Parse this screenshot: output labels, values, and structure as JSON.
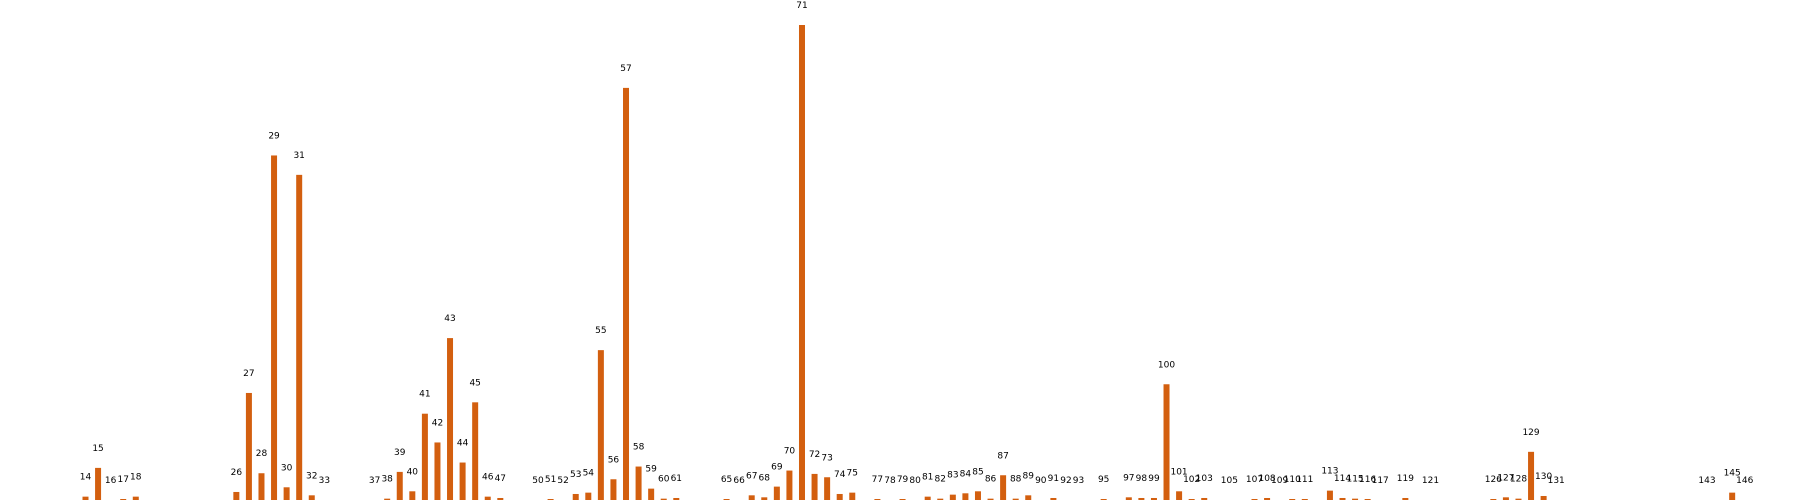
{
  "chart_data": {
    "type": "bar",
    "title": "",
    "xlabel": "",
    "ylabel": "",
    "grid": false,
    "bar_color": "#d35f0f",
    "x_range": [
      12,
      148
    ],
    "ylim": [
      0,
      71
    ],
    "points": [
      {
        "x": 14,
        "label": "14",
        "value": 0.5
      },
      {
        "x": 15,
        "label": "15",
        "value": 4.8
      },
      {
        "x": 16,
        "label": "16",
        "value": 0
      },
      {
        "x": 17,
        "label": "17",
        "value": 0.15
      },
      {
        "x": 18,
        "label": "18",
        "value": 0.5
      },
      {
        "x": 26,
        "label": "26",
        "value": 1.2
      },
      {
        "x": 27,
        "label": "27",
        "value": 16
      },
      {
        "x": 28,
        "label": "28",
        "value": 4
      },
      {
        "x": 29,
        "label": "29",
        "value": 51.5
      },
      {
        "x": 30,
        "label": "30",
        "value": 1.9
      },
      {
        "x": 31,
        "label": "31",
        "value": 48.6
      },
      {
        "x": 32,
        "label": "32",
        "value": 0.7
      },
      {
        "x": 33,
        "label": "33",
        "value": 0
      },
      {
        "x": 37,
        "label": "37",
        "value": 0
      },
      {
        "x": 38,
        "label": "38",
        "value": 0.2
      },
      {
        "x": 39,
        "label": "39",
        "value": 4.2
      },
      {
        "x": 40,
        "label": "40",
        "value": 1.3
      },
      {
        "x": 41,
        "label": "41",
        "value": 12.9
      },
      {
        "x": 42,
        "label": "42",
        "value": 8.6
      },
      {
        "x": 43,
        "label": "43",
        "value": 24.2
      },
      {
        "x": 44,
        "label": "44",
        "value": 5.6
      },
      {
        "x": 45,
        "label": "45",
        "value": 14.6
      },
      {
        "x": 46,
        "label": "46",
        "value": 0.5
      },
      {
        "x": 47,
        "label": "47",
        "value": 0.3
      },
      {
        "x": 50,
        "label": "50",
        "value": 0
      },
      {
        "x": 51,
        "label": "51",
        "value": 0.15
      },
      {
        "x": 52,
        "label": "52",
        "value": 0
      },
      {
        "x": 53,
        "label": "53",
        "value": 0.9
      },
      {
        "x": 54,
        "label": "54",
        "value": 1.1
      },
      {
        "x": 55,
        "label": "55",
        "value": 22.4
      },
      {
        "x": 56,
        "label": "56",
        "value": 3.1
      },
      {
        "x": 57,
        "label": "57",
        "value": 61.6
      },
      {
        "x": 58,
        "label": "58",
        "value": 5
      },
      {
        "x": 59,
        "label": "59",
        "value": 1.7
      },
      {
        "x": 60,
        "label": "60",
        "value": 0.2
      },
      {
        "x": 61,
        "label": "61",
        "value": 0.3
      },
      {
        "x": 65,
        "label": "65",
        "value": 0.15
      },
      {
        "x": 66,
        "label": "66",
        "value": 0
      },
      {
        "x": 67,
        "label": "67",
        "value": 0.7
      },
      {
        "x": 68,
        "label": "68",
        "value": 0.4
      },
      {
        "x": 69,
        "label": "69",
        "value": 2
      },
      {
        "x": 70,
        "label": "70",
        "value": 4.4
      },
      {
        "x": 71,
        "label": "71",
        "value": 71
      },
      {
        "x": 72,
        "label": "72",
        "value": 3.9
      },
      {
        "x": 73,
        "label": "73",
        "value": 3.4
      },
      {
        "x": 74,
        "label": "74",
        "value": 0.9
      },
      {
        "x": 75,
        "label": "75",
        "value": 1.1
      },
      {
        "x": 77,
        "label": "77",
        "value": 0.15
      },
      {
        "x": 78,
        "label": "78",
        "value": 0
      },
      {
        "x": 79,
        "label": "79",
        "value": 0.15
      },
      {
        "x": 80,
        "label": "80",
        "value": 0
      },
      {
        "x": 81,
        "label": "81",
        "value": 0.5
      },
      {
        "x": 82,
        "label": "82",
        "value": 0.2
      },
      {
        "x": 83,
        "label": "83",
        "value": 0.8
      },
      {
        "x": 84,
        "label": "84",
        "value": 1
      },
      {
        "x": 85,
        "label": "85",
        "value": 1.3
      },
      {
        "x": 86,
        "label": "86",
        "value": 0.2
      },
      {
        "x": 87,
        "label": "87",
        "value": 3.7
      },
      {
        "x": 88,
        "label": "88",
        "value": 0.2
      },
      {
        "x": 89,
        "label": "89",
        "value": 0.7
      },
      {
        "x": 90,
        "label": "90",
        "value": 0
      },
      {
        "x": 91,
        "label": "91",
        "value": 0.3
      },
      {
        "x": 92,
        "label": "92",
        "value": 0
      },
      {
        "x": 93,
        "label": "93",
        "value": 0
      },
      {
        "x": 95,
        "label": "95",
        "value": 0.15
      },
      {
        "x": 97,
        "label": "97",
        "value": 0.4
      },
      {
        "x": 98,
        "label": "98",
        "value": 0.3
      },
      {
        "x": 99,
        "label": "99",
        "value": 0.3
      },
      {
        "x": 100,
        "label": "100",
        "value": 17.3
      },
      {
        "x": 101,
        "label": "101",
        "value": 1.3
      },
      {
        "x": 102,
        "label": "102",
        "value": 0.15
      },
      {
        "x": 103,
        "label": "103",
        "value": 0.3
      },
      {
        "x": 105,
        "label": "105",
        "value": 0
      },
      {
        "x": 107,
        "label": "107",
        "value": 0.15
      },
      {
        "x": 108,
        "label": "108",
        "value": 0.3
      },
      {
        "x": 109,
        "label": "109",
        "value": 0
      },
      {
        "x": 110,
        "label": "110",
        "value": 0.15
      },
      {
        "x": 111,
        "label": "111",
        "value": 0.15
      },
      {
        "x": 113,
        "label": "113",
        "value": 1.4
      },
      {
        "x": 114,
        "label": "114",
        "value": 0.3
      },
      {
        "x": 115,
        "label": "115",
        "value": 0.2
      },
      {
        "x": 116,
        "label": "116",
        "value": 0.15
      },
      {
        "x": 117,
        "label": "117",
        "value": 0
      },
      {
        "x": 119,
        "label": "119",
        "value": 0.3
      },
      {
        "x": 121,
        "label": "121",
        "value": 0
      },
      {
        "x": 126,
        "label": "126",
        "value": 0.15
      },
      {
        "x": 127,
        "label": "127",
        "value": 0.4
      },
      {
        "x": 128,
        "label": "128",
        "value": 0.2
      },
      {
        "x": 129,
        "label": "129",
        "value": 7.2
      },
      {
        "x": 130,
        "label": "130",
        "value": 0.6
      },
      {
        "x": 131,
        "label": "131",
        "value": 0
      },
      {
        "x": 143,
        "label": "143",
        "value": 0
      },
      {
        "x": 145,
        "label": "145",
        "value": 1.1
      },
      {
        "x": 146,
        "label": "146",
        "value": 0
      }
    ]
  }
}
